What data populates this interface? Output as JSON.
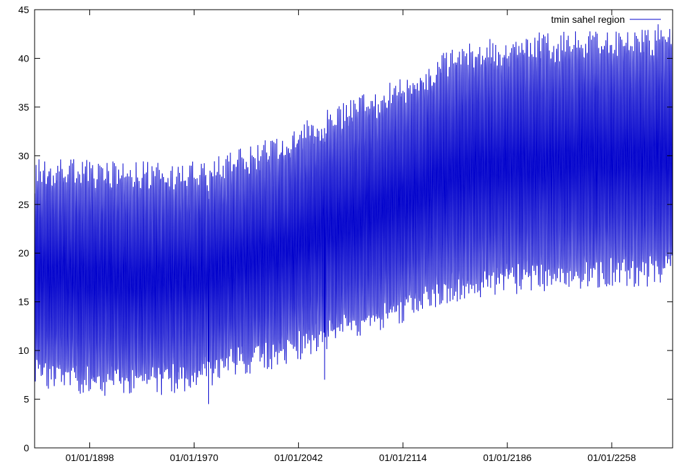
{
  "chart_data": {
    "type": "line",
    "title": "",
    "xlabel": "",
    "ylabel": "",
    "xlim": [
      "01/01/1860",
      "01/01/2300"
    ],
    "ylim": [
      0,
      45
    ],
    "grid": false,
    "legend_position": "top-right",
    "x_tick_labels": [
      "01/01/1898",
      "01/01/1970",
      "01/01/2042",
      "01/01/2114",
      "01/01/2186",
      "01/01/2258"
    ],
    "y_tick_labels": [
      "0",
      "5",
      "10",
      "15",
      "20",
      "25",
      "30",
      "35",
      "40",
      "45"
    ],
    "series": [
      {
        "name": "tmin sahel region",
        "color": "#0000cc",
        "sampling": "monthly",
        "annual_max_envelope": [
          {
            "x": "01/01/1860",
            "y": 29.0
          },
          {
            "x": "01/01/1900",
            "y": 29.0
          },
          {
            "x": "01/01/1940",
            "y": 28.8
          },
          {
            "x": "01/01/1970",
            "y": 28.8
          },
          {
            "x": "01/01/2000",
            "y": 30.0
          },
          {
            "x": "01/01/2030",
            "y": 31.5
          },
          {
            "x": "01/01/2060",
            "y": 34.0
          },
          {
            "x": "01/01/2090",
            "y": 36.0
          },
          {
            "x": "01/01/2114",
            "y": 37.5
          },
          {
            "x": "01/01/2140",
            "y": 40.0
          },
          {
            "x": "01/01/2170",
            "y": 41.5
          },
          {
            "x": "01/01/2200",
            "y": 42.0
          },
          {
            "x": "01/01/2230",
            "y": 42.3
          },
          {
            "x": "01/01/2260",
            "y": 42.5
          },
          {
            "x": "01/01/2300",
            "y": 43.0
          }
        ],
        "annual_min_envelope": [
          {
            "x": "01/01/1860",
            "y": 7.0
          },
          {
            "x": "01/01/1900",
            "y": 6.0
          },
          {
            "x": "01/01/1940",
            "y": 6.0
          },
          {
            "x": "01/01/1970",
            "y": 6.5
          },
          {
            "x": "01/01/2000",
            "y": 8.0
          },
          {
            "x": "01/01/2030",
            "y": 9.0
          },
          {
            "x": "01/01/2060",
            "y": 10.5
          },
          {
            "x": "01/01/2090",
            "y": 12.0
          },
          {
            "x": "01/01/2114",
            "y": 13.5
          },
          {
            "x": "01/01/2140",
            "y": 15.0
          },
          {
            "x": "01/01/2170",
            "y": 16.0
          },
          {
            "x": "01/01/2200",
            "y": 16.5
          },
          {
            "x": "01/01/2230",
            "y": 16.8
          },
          {
            "x": "01/01/2260",
            "y": 17.0
          },
          {
            "x": "01/01/2300",
            "y": 17.2
          }
        ],
        "notable_extremes": [
          {
            "x": "01/01/1860",
            "y": 4.0
          },
          {
            "x": "01/01/1980",
            "y": 4.5
          },
          {
            "x": "01/01/2060",
            "y": 7.0
          },
          {
            "x": "01/01/2290",
            "y": 43.5
          }
        ]
      }
    ]
  }
}
